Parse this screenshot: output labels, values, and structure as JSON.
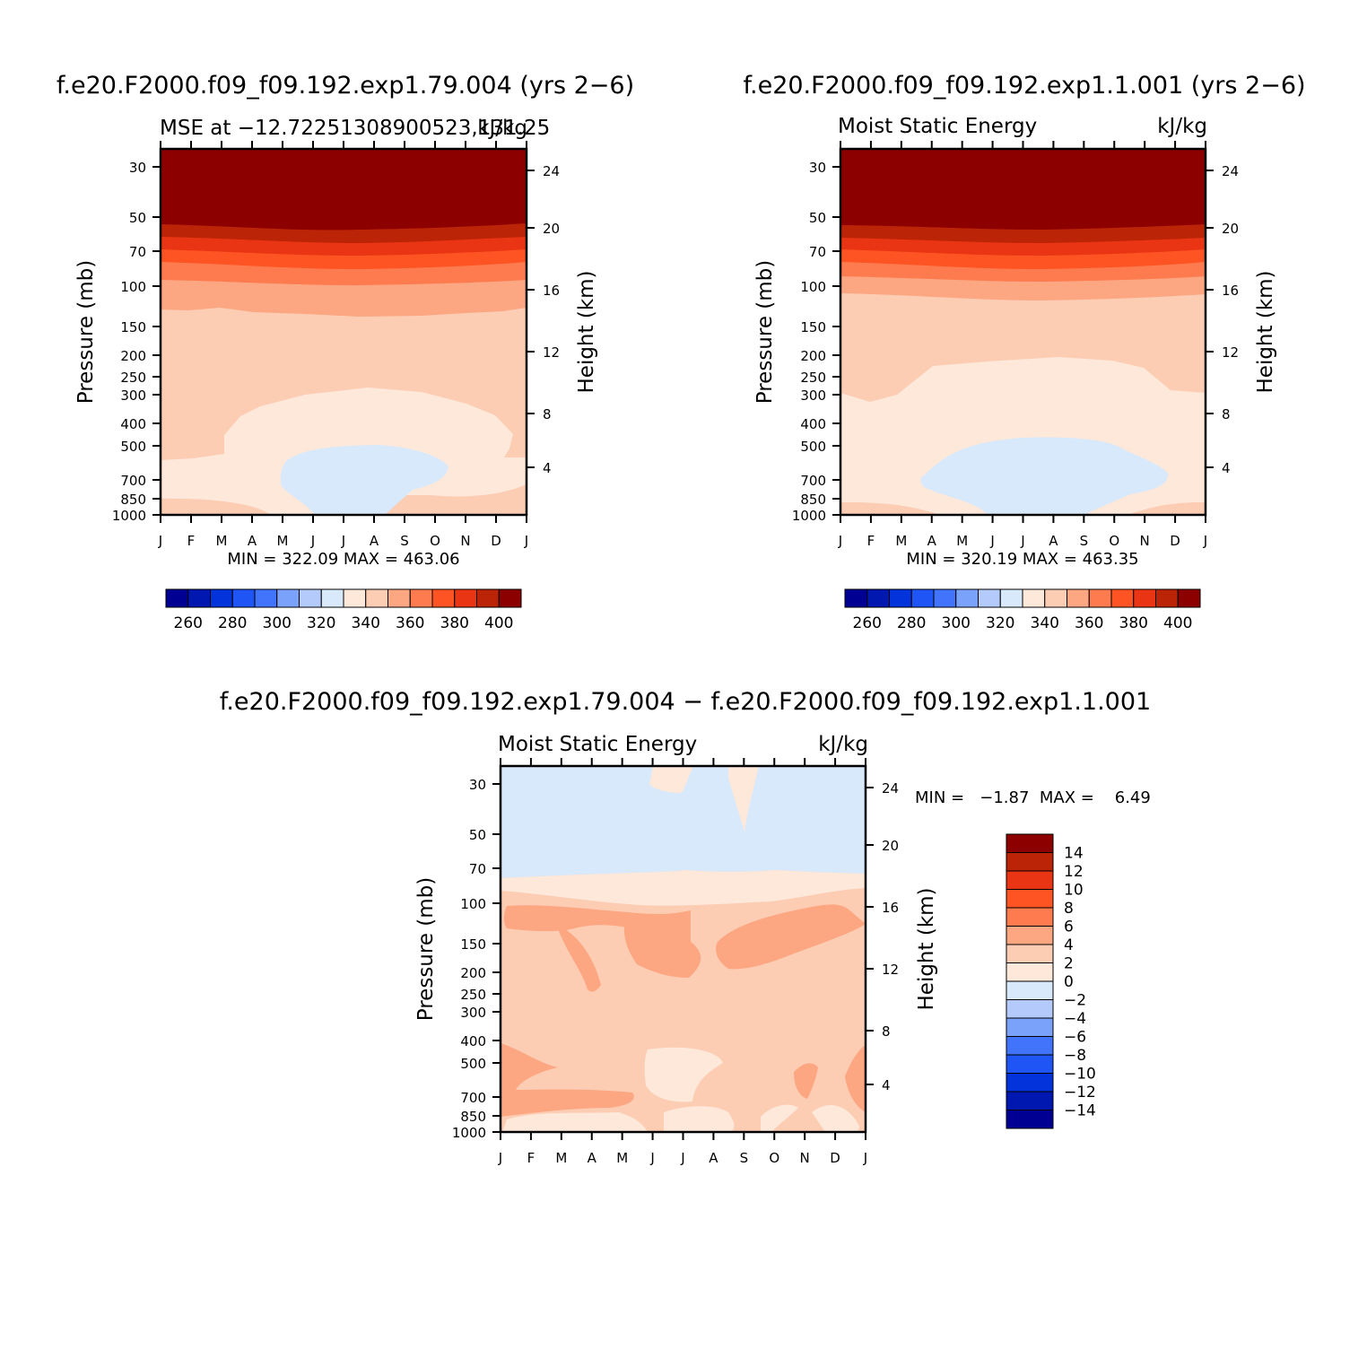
{
  "colors": {
    "cmap": [
      "#000092",
      "#0018b0",
      "#0333da",
      "#1f55f4",
      "#4174fb",
      "#7ba2fb",
      "#b3cafb",
      "#d7e9fb",
      "#fde8da",
      "#fcccb3",
      "#fca682",
      "#fd7b4f",
      "#fe5322",
      "#e93513",
      "#bb2407",
      "#8c0000"
    ]
  },
  "panels": [
    {
      "case": "f.e20.F2000.f09_f09.192.exp1.79.004 (yrs 2−6)",
      "left_title": "MSE at −12.72251308900523,131.25",
      "right_title": "kJ/kg",
      "stats": "MIN = 322.09  MAX = 463.06",
      "months": [
        "J",
        "F",
        "M",
        "A",
        "M",
        "J",
        "J",
        "A",
        "S",
        "O",
        "N",
        "D",
        "J"
      ],
      "pressure_ticks": [
        "30",
        "50",
        "70",
        "100",
        "150",
        "200",
        "250",
        "300",
        "400",
        "500",
        "700",
        "850",
        "1000"
      ],
      "height_ticks": [
        "24",
        "20",
        "16",
        "12",
        "8",
        "4"
      ],
      "ylabel": "Pressure (mb)",
      "ylabel_right": "Height (km)",
      "colorbar_labels": [
        "260",
        "280",
        "300",
        "320",
        "340",
        "360",
        "380",
        "400"
      ]
    },
    {
      "case": "f.e20.F2000.f09_f09.192.exp1.1.001 (yrs 2−6)",
      "left_title": "Moist Static Energy",
      "right_title": "kJ/kg",
      "stats": "MIN = 320.19  MAX = 463.35",
      "months": [
        "J",
        "F",
        "M",
        "A",
        "M",
        "J",
        "J",
        "A",
        "S",
        "O",
        "N",
        "D",
        "J"
      ],
      "pressure_ticks": [
        "30",
        "50",
        "70",
        "100",
        "150",
        "200",
        "250",
        "300",
        "400",
        "500",
        "700",
        "850",
        "1000"
      ],
      "height_ticks": [
        "24",
        "20",
        "16",
        "12",
        "8",
        "4"
      ],
      "ylabel": "Pressure (mb)",
      "ylabel_right": "Height (km)",
      "colorbar_labels": [
        "260",
        "280",
        "300",
        "320",
        "340",
        "360",
        "380",
        "400"
      ]
    },
    {
      "case": "f.e20.F2000.f09_f09.192.exp1.79.004 − f.e20.F2000.f09_f09.192.exp1.1.001",
      "left_title": "Moist Static Energy",
      "right_title": "kJ/kg",
      "stats": "MIN =   −1.87  MAX =    6.49",
      "months": [
        "J",
        "F",
        "M",
        "A",
        "M",
        "J",
        "J",
        "A",
        "S",
        "O",
        "N",
        "D",
        "J"
      ],
      "pressure_ticks": [
        "30",
        "50",
        "70",
        "100",
        "150",
        "200",
        "250",
        "300",
        "400",
        "500",
        "700",
        "850",
        "1000"
      ],
      "height_ticks": [
        "24",
        "20",
        "16",
        "12",
        "8",
        "4"
      ],
      "ylabel": "Pressure (mb)",
      "ylabel_right": "Height (km)",
      "colorbar_labels": [
        "14",
        "12",
        "10",
        "8",
        "6",
        "4",
        "2",
        "0",
        "−2",
        "−4",
        "−6",
        "−8",
        "−10",
        "−12",
        "−14"
      ]
    }
  ],
  "chart_data": [
    {
      "type": "heatmap",
      "title": "MSE at −12.72251308900523,131.25",
      "units": "kJ/kg",
      "x_categories": [
        "J",
        "F",
        "M",
        "A",
        "M",
        "J",
        "J",
        "A",
        "S",
        "O",
        "N",
        "D",
        "J"
      ],
      "ylabel": "Pressure (mb)",
      "pressure_levels_mb": [
        20,
        30,
        50,
        60,
        70,
        80,
        100,
        120,
        300,
        500,
        850,
        1000
      ],
      "contour_levels": [
        250,
        260,
        270,
        280,
        290,
        300,
        310,
        320,
        330,
        340,
        350,
        360,
        370,
        380,
        390,
        400
      ],
      "min": 322.09,
      "max": 463.06,
      "band_values_by_month": [
        [
          410,
          410,
          410,
          410,
          410,
          410,
          410,
          410,
          410,
          410,
          410,
          410,
          410
        ],
        [
          395,
          395,
          395,
          395,
          395,
          395,
          395,
          395,
          395,
          395,
          395,
          395,
          395
        ],
        [
          385,
          385,
          385,
          385,
          385,
          385,
          385,
          385,
          385,
          385,
          385,
          385,
          385
        ],
        [
          375,
          375,
          375,
          375,
          375,
          375,
          375,
          375,
          375,
          375,
          375,
          375,
          375
        ],
        [
          365,
          365,
          365,
          365,
          365,
          365,
          365,
          365,
          365,
          365,
          365,
          365,
          365
        ],
        [
          355,
          355,
          355,
          355,
          355,
          355,
          355,
          355,
          355,
          355,
          355,
          355,
          355
        ],
        [
          345,
          345,
          345,
          345,
          345,
          345,
          345,
          345,
          345,
          345,
          345,
          345,
          345
        ],
        [
          345,
          345,
          345,
          345,
          338,
          335,
          335,
          335,
          335,
          338,
          345,
          345,
          345
        ],
        [
          345,
          345,
          338,
          332,
          332,
          328,
          328,
          328,
          332,
          338,
          340,
          345,
          345
        ],
        [
          338,
          338,
          338,
          338,
          332,
          328,
          328,
          328,
          332,
          338,
          340,
          345,
          345
        ],
        [
          345,
          345,
          345,
          338,
          338,
          338,
          338,
          338,
          338,
          342,
          345,
          345,
          345
        ]
      ]
    },
    {
      "type": "heatmap",
      "title": "Moist Static Energy",
      "units": "kJ/kg",
      "x_categories": [
        "J",
        "F",
        "M",
        "A",
        "M",
        "J",
        "J",
        "A",
        "S",
        "O",
        "N",
        "D",
        "J"
      ],
      "ylabel": "Pressure (mb)",
      "pressure_levels_mb": [
        20,
        30,
        50,
        60,
        70,
        80,
        100,
        120,
        300,
        500,
        850,
        1000
      ],
      "contour_levels": [
        250,
        260,
        270,
        280,
        290,
        300,
        310,
        320,
        330,
        340,
        350,
        360,
        370,
        380,
        390,
        400
      ],
      "min": 320.19,
      "max": 463.35,
      "band_values_by_month": [
        [
          410,
          410,
          410,
          410,
          410,
          410,
          410,
          410,
          410,
          410,
          410,
          410,
          410
        ],
        [
          395,
          395,
          395,
          395,
          395,
          395,
          395,
          395,
          395,
          395,
          395,
          395,
          395
        ],
        [
          385,
          385,
          385,
          385,
          385,
          385,
          385,
          385,
          385,
          385,
          385,
          385,
          385
        ],
        [
          375,
          375,
          375,
          375,
          375,
          375,
          375,
          375,
          375,
          375,
          375,
          375,
          375
        ],
        [
          365,
          365,
          365,
          365,
          365,
          365,
          365,
          365,
          365,
          365,
          365,
          365,
          365
        ],
        [
          355,
          355,
          355,
          355,
          355,
          355,
          355,
          355,
          355,
          355,
          355,
          355,
          355
        ],
        [
          345,
          345,
          345,
          345,
          345,
          345,
          345,
          345,
          345,
          345,
          345,
          345,
          345
        ],
        [
          345,
          345,
          338,
          338,
          338,
          338,
          338,
          338,
          338,
          338,
          338,
          345,
          345
        ],
        [
          338,
          338,
          338,
          332,
          328,
          328,
          328,
          328,
          328,
          332,
          338,
          338,
          338
        ],
        [
          338,
          338,
          338,
          338,
          332,
          328,
          328,
          328,
          328,
          332,
          338,
          338,
          338
        ],
        [
          345,
          345,
          345,
          338,
          338,
          338,
          338,
          338,
          338,
          342,
          345,
          345,
          345
        ]
      ]
    },
    {
      "type": "heatmap",
      "title": "Moist Static Energy",
      "units": "kJ/kg",
      "x_categories": [
        "J",
        "F",
        "M",
        "A",
        "M",
        "J",
        "J",
        "A",
        "S",
        "O",
        "N",
        "D",
        "J"
      ],
      "ylabel": "Pressure (mb)",
      "pressure_levels_mb": [
        20,
        75,
        85,
        100,
        120,
        400,
        1000
      ],
      "contour_levels": [
        -14,
        -12,
        -10,
        -8,
        -6,
        -4,
        -2,
        0,
        2,
        4,
        6,
        8,
        10,
        12,
        14
      ],
      "min": -1.87,
      "max": 6.49,
      "band_values_by_month": [
        [
          -1,
          -1,
          -1,
          -1,
          -1,
          1,
          -1,
          -1,
          1,
          -1,
          -1,
          -1,
          -1
        ],
        [
          1,
          1,
          1,
          1,
          1,
          1,
          1,
          1,
          1,
          1,
          1,
          1,
          1
        ],
        [
          3,
          3,
          3,
          3,
          3,
          3,
          3,
          3,
          3,
          3,
          3,
          3,
          3
        ],
        [
          5,
          5,
          5,
          5,
          5,
          3,
          3,
          3,
          3,
          5,
          5,
          5,
          3
        ],
        [
          3,
          3,
          3,
          3,
          3,
          3,
          3,
          3,
          3,
          3,
          3,
          3,
          3
        ],
        [
          5,
          5,
          5,
          5,
          3,
          1,
          1,
          3,
          3,
          3,
          5,
          3,
          5
        ]
      ]
    }
  ]
}
